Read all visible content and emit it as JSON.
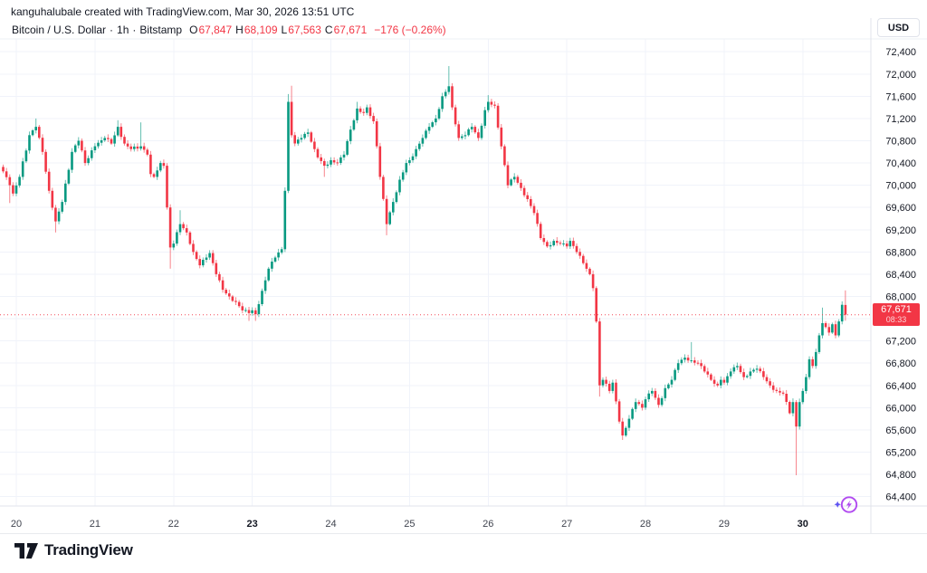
{
  "header": {
    "attribution": "kanguhalubale created with TradingView.com, Mar 30, 2026 13:51 UTC"
  },
  "legend": {
    "symbol": "Bitcoin / U.S. Dollar",
    "sep1": "·",
    "interval": "1h",
    "sep2": "·",
    "exchange": "Bitstamp",
    "o_label": "O",
    "o_value": "67,847",
    "h_label": "H",
    "h_value": "68,109",
    "l_label": "L",
    "l_value": "67,563",
    "c_label": "C",
    "c_value": "67,671",
    "change": "−176 (−0.26%)"
  },
  "axis": {
    "currency": "USD"
  },
  "price_label": {
    "price": "67,671",
    "countdown": "08:33"
  },
  "footer": {
    "brand": "TradingView"
  },
  "colors": {
    "up": "#089981",
    "down": "#F23645",
    "price_line": "#F23645",
    "grid": "#f0f3fa",
    "border": "#e0e3eb",
    "axis_text": "#131722",
    "boost_purple": "#b14bf0",
    "boost_star": "#5f54f2",
    "label_bg": "#F23645"
  },
  "chart_data": {
    "type": "candlestick",
    "title": "Bitcoin / U.S. Dollar · 1h · Bitstamp",
    "ylabel": "USD",
    "current_bar": {
      "open": 67847,
      "high": 68109,
      "low": 67563,
      "close": 67671,
      "change": -176,
      "change_pct": -0.26
    },
    "ylim": [
      64280,
      72680
    ],
    "y_ticks": [
      72400,
      72000,
      71600,
      71200,
      70800,
      70400,
      70000,
      69600,
      69200,
      68800,
      68400,
      68000,
      67600,
      67200,
      66800,
      66400,
      66000,
      65600,
      65200,
      64800,
      64400
    ],
    "x_ticks": [
      {
        "t": 4,
        "label": "20"
      },
      {
        "t": 28,
        "label": "21"
      },
      {
        "t": 52,
        "label": "22"
      },
      {
        "t": 76,
        "label": "23",
        "bold": true
      },
      {
        "t": 100,
        "label": "24"
      },
      {
        "t": 124,
        "label": "25"
      },
      {
        "t": 148,
        "label": "26"
      },
      {
        "t": 172,
        "label": "27"
      },
      {
        "t": 196,
        "label": "28"
      },
      {
        "t": 220,
        "label": "29"
      },
      {
        "t": 244,
        "label": "30",
        "bold": true
      }
    ],
    "interval_hours": 1,
    "price_line": 67671,
    "candles": {
      "count": 258,
      "first_open": 70330,
      "zigzag": 30,
      "keypoints": [
        [
          0,
          70250
        ],
        [
          2,
          70000
        ],
        [
          3,
          69850
        ],
        [
          5,
          70150
        ],
        [
          8,
          70900
        ],
        [
          10,
          71050
        ],
        [
          12,
          70600
        ],
        [
          14,
          69900
        ],
        [
          16,
          69350
        ],
        [
          18,
          69700
        ],
        [
          21,
          70600
        ],
        [
          23,
          70800
        ],
        [
          25,
          70400
        ],
        [
          28,
          70700
        ],
        [
          31,
          70850
        ],
        [
          33,
          70750
        ],
        [
          35,
          71050
        ],
        [
          37,
          70750
        ],
        [
          39,
          70650
        ],
        [
          42,
          70700
        ],
        [
          44,
          70550
        ],
        [
          45,
          70200
        ],
        [
          46,
          70150
        ],
        [
          48,
          70400
        ],
        [
          49,
          70350
        ],
        [
          50,
          69600
        ],
        [
          51,
          68880
        ],
        [
          52,
          68950
        ],
        [
          54,
          69300
        ],
        [
          56,
          69150
        ],
        [
          58,
          68800
        ],
        [
          60,
          68560
        ],
        [
          62,
          68700
        ],
        [
          63,
          68780
        ],
        [
          65,
          68400
        ],
        [
          67,
          68120
        ],
        [
          69,
          68000
        ],
        [
          71,
          67900
        ],
        [
          73,
          67750
        ],
        [
          75,
          67700
        ],
        [
          76,
          67750
        ],
        [
          77,
          67680
        ],
        [
          79,
          68100
        ],
        [
          81,
          68500
        ],
        [
          83,
          68700
        ],
        [
          85,
          68850
        ],
        [
          86,
          69900
        ],
        [
          87,
          71500
        ],
        [
          88,
          70900
        ],
        [
          89,
          70750
        ],
        [
          91,
          70850
        ],
        [
          93,
          70950
        ],
        [
          95,
          70650
        ],
        [
          96,
          70500
        ],
        [
          98,
          70350
        ],
        [
          100,
          70450
        ],
        [
          102,
          70400
        ],
        [
          104,
          70550
        ],
        [
          106,
          71000
        ],
        [
          108,
          71380
        ],
        [
          110,
          71300
        ],
        [
          111,
          71400
        ],
        [
          113,
          71150
        ],
        [
          114,
          70700
        ],
        [
          115,
          70150
        ],
        [
          117,
          69300
        ],
        [
          119,
          69700
        ],
        [
          121,
          70100
        ],
        [
          123,
          70400
        ],
        [
          124,
          70450
        ],
        [
          126,
          70650
        ],
        [
          128,
          70850
        ],
        [
          130,
          71050
        ],
        [
          132,
          71200
        ],
        [
          134,
          71600
        ],
        [
          136,
          71780
        ],
        [
          137,
          71400
        ],
        [
          139,
          70850
        ],
        [
          141,
          70900
        ],
        [
          143,
          71050
        ],
        [
          145,
          70850
        ],
        [
          147,
          71350
        ],
        [
          148,
          71500
        ],
        [
          150,
          71430
        ],
        [
          152,
          70700
        ],
        [
          154,
          70000
        ],
        [
          156,
          70150
        ],
        [
          158,
          69950
        ],
        [
          160,
          69750
        ],
        [
          162,
          69500
        ],
        [
          164,
          69050
        ],
        [
          166,
          68900
        ],
        [
          168,
          69000
        ],
        [
          170,
          68950
        ],
        [
          172,
          68900
        ],
        [
          173,
          69000
        ],
        [
          175,
          68800
        ],
        [
          177,
          68600
        ],
        [
          179,
          68400
        ],
        [
          180,
          68150
        ],
        [
          181,
          67550
        ],
        [
          182,
          66400
        ],
        [
          183,
          66500
        ],
        [
          185,
          66300
        ],
        [
          186,
          66450
        ],
        [
          188,
          65750
        ],
        [
          189,
          65500
        ],
        [
          191,
          65800
        ],
        [
          193,
          66100
        ],
        [
          195,
          66000
        ],
        [
          196,
          66150
        ],
        [
          198,
          66300
        ],
        [
          200,
          66050
        ],
        [
          202,
          66350
        ],
        [
          204,
          66500
        ],
        [
          206,
          66800
        ],
        [
          208,
          66900
        ],
        [
          210,
          66850
        ],
        [
          212,
          66800
        ],
        [
          214,
          66650
        ],
        [
          216,
          66500
        ],
        [
          218,
          66400
        ],
        [
          219,
          66500
        ],
        [
          220,
          66450
        ],
        [
          222,
          66650
        ],
        [
          224,
          66750
        ],
        [
          226,
          66550
        ],
        [
          228,
          66650
        ],
        [
          230,
          66700
        ],
        [
          232,
          66550
        ],
        [
          234,
          66400
        ],
        [
          236,
          66300
        ],
        [
          238,
          66250
        ],
        [
          240,
          65900
        ],
        [
          241,
          66100
        ],
        [
          242,
          65660
        ],
        [
          243,
          66100
        ],
        [
          244,
          66300
        ],
        [
          245,
          66550
        ],
        [
          246,
          66870
        ],
        [
          247,
          66750
        ],
        [
          248,
          67000
        ],
        [
          249,
          67300
        ],
        [
          250,
          67520
        ],
        [
          251,
          67450
        ],
        [
          252,
          67350
        ],
        [
          253,
          67500
        ],
        [
          254,
          67300
        ],
        [
          255,
          67550
        ],
        [
          256,
          67850
        ],
        [
          257,
          67671
        ]
      ],
      "wick_overrides": [
        [
          2,
          null,
          69680
        ],
        [
          10,
          71200,
          null
        ],
        [
          16,
          null,
          69150
        ],
        [
          35,
          71170,
          null
        ],
        [
          42,
          71130,
          null
        ],
        [
          51,
          null,
          68500
        ],
        [
          54,
          69550,
          null
        ],
        [
          75,
          null,
          67560
        ],
        [
          77,
          null,
          67560
        ],
        [
          87,
          71640,
          null
        ],
        [
          88,
          71790,
          null
        ],
        [
          98,
          null,
          70150
        ],
        [
          108,
          71500,
          null
        ],
        [
          117,
          null,
          69100
        ],
        [
          136,
          72143,
          null
        ],
        [
          148,
          71620,
          null
        ],
        [
          182,
          null,
          66200
        ],
        [
          189,
          null,
          65420
        ],
        [
          210,
          67180,
          null
        ],
        [
          242,
          null,
          64785
        ],
        [
          250,
          67800,
          null
        ],
        [
          257,
          68109,
          67563
        ]
      ]
    }
  }
}
